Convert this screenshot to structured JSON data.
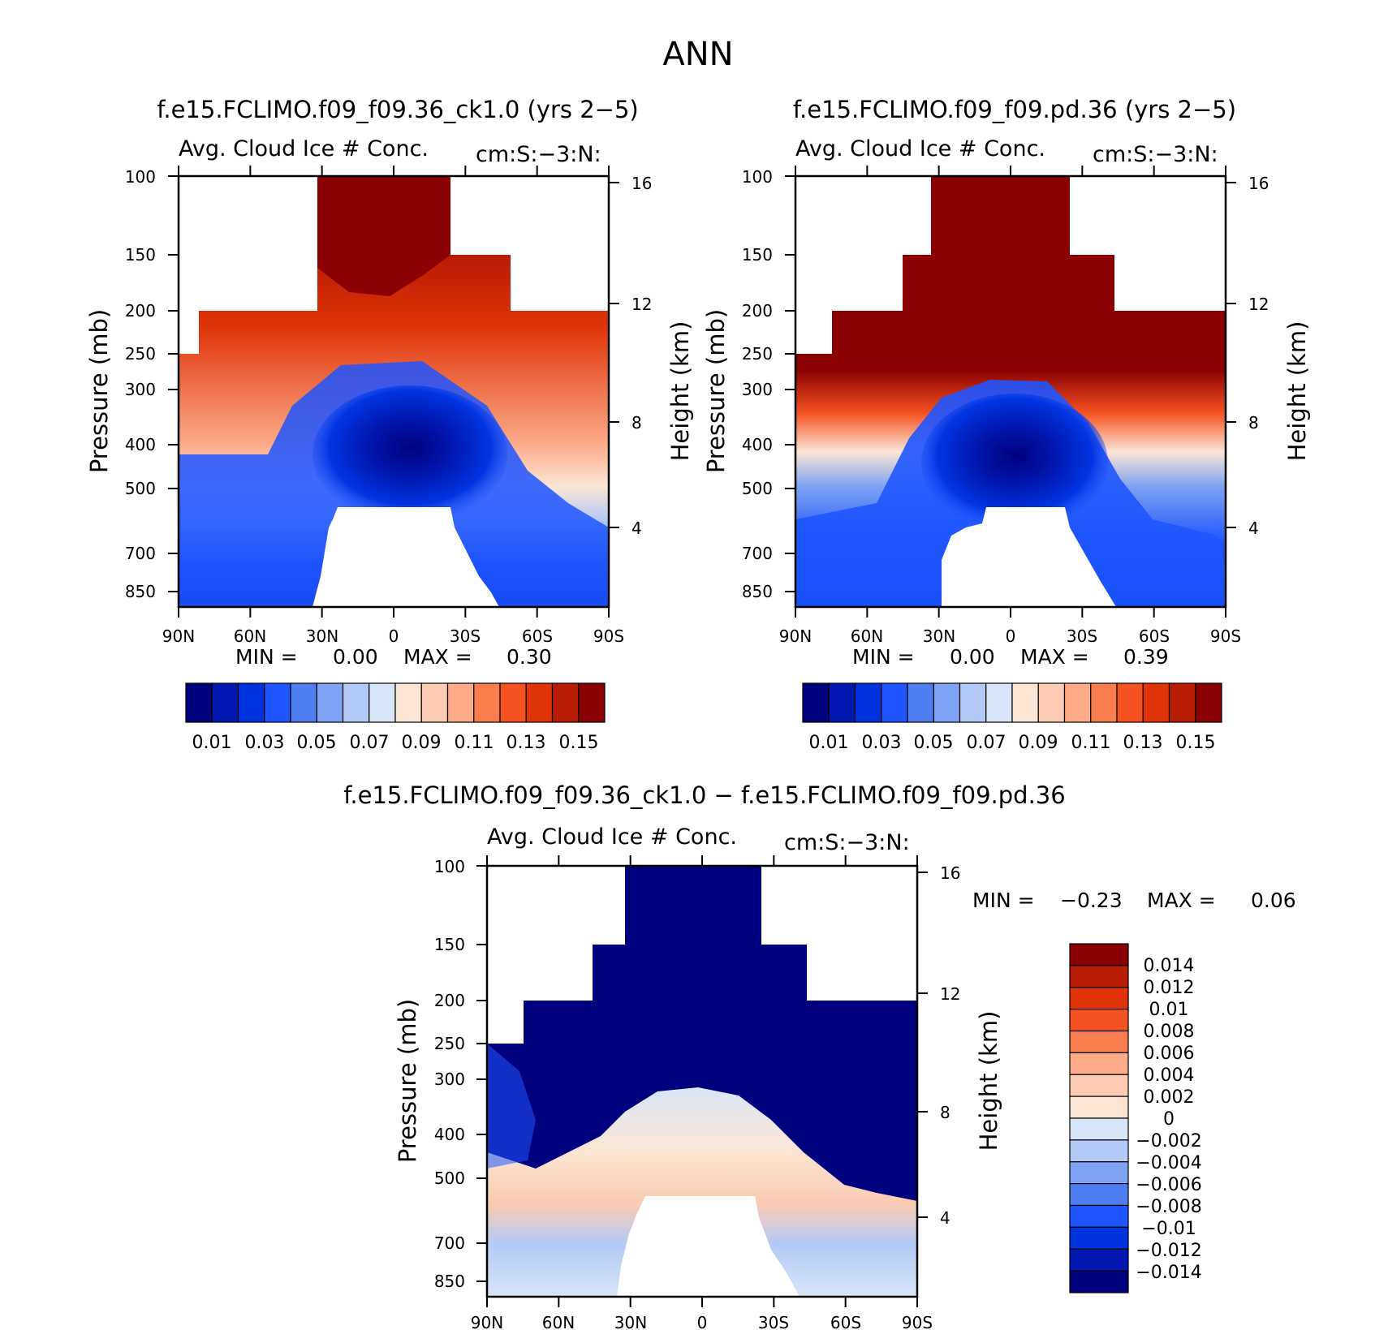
{
  "page": {
    "season": "ANN"
  },
  "colors": {
    "abs_scale": [
      "#00007f",
      "#0018b0",
      "#0033e0",
      "#1f55ff",
      "#4f7df2",
      "#7ea3f2",
      "#b3c9f7",
      "#d9e6f7",
      "#fbe6d6",
      "#fccbb1",
      "#fcaa88",
      "#fa7d50",
      "#f55222",
      "#e0330a",
      "#b81e05",
      "#8b0000"
    ],
    "diff_scale": [
      "#00007f",
      "#0018b0",
      "#0033e0",
      "#1f55ff",
      "#4f7df2",
      "#7ea3f2",
      "#b3c9f7",
      "#d9e6f7",
      "#fbe6d6",
      "#fccbb1",
      "#fcaa88",
      "#fa7d50",
      "#f55222",
      "#e0330a",
      "#b81e05",
      "#8b0000"
    ]
  },
  "chart_data": [
    {
      "type": "heatmap",
      "title": "f.e15.FCLIMO.f09_f09.36_ck1.0 (yrs 2−5)",
      "subtitle_left": "Avg. Cloud Ice # Conc.",
      "subtitle_right": "cm:S:−3:N:",
      "xlabel": "",
      "ylabel": "Pressure (mb)",
      "ylabel_right": "Height (km)",
      "x_ticks": [
        "90N",
        "60N",
        "30N",
        "0",
        "30S",
        "60S",
        "90S"
      ],
      "y_ticks": [
        "100",
        "150",
        "200",
        "250",
        "300",
        "400",
        "500",
        "700",
        "850"
      ],
      "y2_ticks": [
        "16",
        "12",
        "8",
        "4"
      ],
      "min_label": "MIN =",
      "min_value": "0.00",
      "max_label": "MAX =",
      "max_value": "0.30",
      "colorbar_labels": [
        "0.01",
        "0.03",
        "0.05",
        "0.07",
        "0.09",
        "0.11",
        "0.13",
        "0.15"
      ]
    },
    {
      "type": "heatmap",
      "title": "f.e15.FCLIMO.f09_f09.pd.36 (yrs 2−5)",
      "subtitle_left": "Avg. Cloud Ice # Conc.",
      "subtitle_right": "cm:S:−3:N:",
      "xlabel": "",
      "ylabel": "Pressure (mb)",
      "ylabel_right": "Height (km)",
      "x_ticks": [
        "90N",
        "60N",
        "30N",
        "0",
        "30S",
        "60S",
        "90S"
      ],
      "y_ticks": [
        "100",
        "150",
        "200",
        "250",
        "300",
        "400",
        "500",
        "700",
        "850"
      ],
      "y2_ticks": [
        "16",
        "12",
        "8",
        "4"
      ],
      "min_label": "MIN =",
      "min_value": "0.00",
      "max_label": "MAX =",
      "max_value": "0.39",
      "colorbar_labels": [
        "0.01",
        "0.03",
        "0.05",
        "0.07",
        "0.09",
        "0.11",
        "0.13",
        "0.15"
      ]
    },
    {
      "type": "heatmap",
      "title": "f.e15.FCLIMO.f09_f09.36_ck1.0 − f.e15.FCLIMO.f09_f09.pd.36",
      "subtitle_left": "Avg. Cloud Ice # Conc.",
      "subtitle_right": "cm:S:−3:N:",
      "xlabel": "",
      "ylabel": "Pressure (mb)",
      "ylabel_right": "Height (km)",
      "x_ticks": [
        "90N",
        "60N",
        "30N",
        "0",
        "30S",
        "60S",
        "90S"
      ],
      "y_ticks": [
        "100",
        "150",
        "200",
        "250",
        "300",
        "400",
        "500",
        "700",
        "850"
      ],
      "y2_ticks": [
        "16",
        "12",
        "8",
        "4"
      ],
      "min_label": "MIN =",
      "min_value": "−0.23",
      "max_label": "MAX =",
      "max_value": "0.06",
      "colorbar_labels": [
        "0.014",
        "0.012",
        "0.01",
        "0.008",
        "0.006",
        "0.004",
        "0.002",
        "0",
        "−0.002",
        "−0.004",
        "−0.006",
        "−0.008",
        "−0.01",
        "−0.012",
        "−0.014"
      ]
    }
  ]
}
